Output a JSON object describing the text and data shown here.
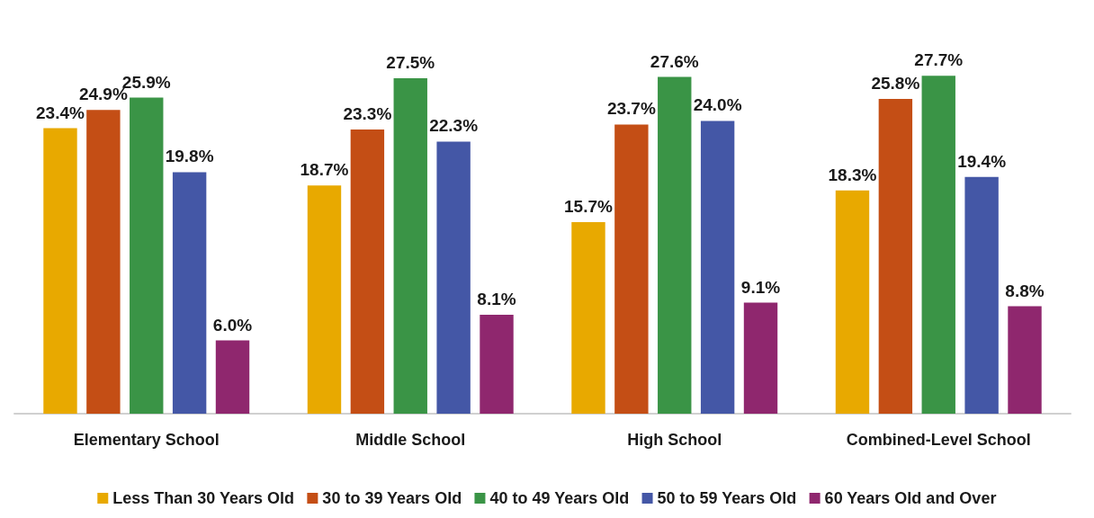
{
  "chart_data": {
    "type": "bar",
    "categories": [
      "Elementary School",
      "Middle School",
      "High School",
      "Combined-Level School"
    ],
    "series": [
      {
        "name": "Less Than 30 Years Old",
        "color": "#e8a900",
        "values": [
          23.4,
          18.7,
          15.7,
          18.3
        ],
        "value_labels": [
          "23.4%",
          "18.7%",
          "15.7%",
          "18.3%"
        ]
      },
      {
        "name": "30 to 39 Years Old",
        "color": "#c44e15",
        "values": [
          24.9,
          23.3,
          23.7,
          25.8
        ],
        "value_labels": [
          "24.9%",
          "23.3%",
          "23.7%",
          "25.8%"
        ]
      },
      {
        "name": "40 to 49 Years Old",
        "color": "#3a9446",
        "values": [
          25.9,
          27.5,
          27.6,
          27.7
        ],
        "value_labels": [
          "25.9%",
          "27.5%",
          "27.6%",
          "27.7%"
        ]
      },
      {
        "name": "50 to 59 Years Old",
        "color": "#4457a6",
        "values": [
          19.8,
          22.3,
          24.0,
          19.4
        ],
        "value_labels": [
          "19.8%",
          "22.3%",
          "24.0%",
          "19.4%"
        ]
      },
      {
        "name": "60 Years Old and Over",
        "color": "#8f276e",
        "values": [
          6.0,
          8.1,
          9.1,
          8.8
        ],
        "value_labels": [
          "6.0%",
          "8.1%",
          "9.1%",
          "8.8%"
        ]
      }
    ],
    "legend": "bottom",
    "grid": false
  }
}
